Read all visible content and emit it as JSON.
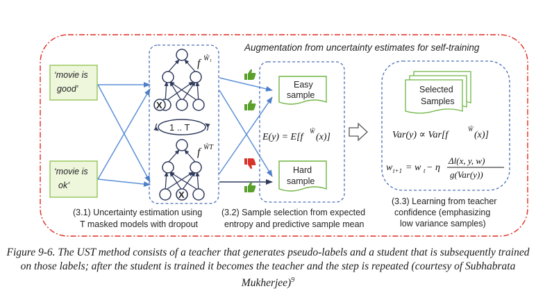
{
  "header": {
    "augmentation_title": "Augmentation from uncertainty estimates for self-training"
  },
  "inputs": [
    {
      "line1": "‘movie is",
      "line2": "good’"
    },
    {
      "line1": "‘movie is",
      "line2": "ok’"
    }
  ],
  "models": {
    "top_label": "f",
    "top_sup": "W̃₁",
    "bottom_label": "f",
    "bottom_sup": "W̃T",
    "iteration_label": "1 .. T",
    "dropout_mark": "X"
  },
  "samples": {
    "easy": {
      "line1": "Easy",
      "line2": "sample"
    },
    "hard": {
      "line1": "Hard",
      "line2": "sample"
    },
    "expectation_formula": "E(y) = E[f W̃(x)]",
    "expectation_lhs": "E(y) = E[f",
    "expectation_sup": "W̃",
    "expectation_rhs": "(x)]"
  },
  "student": {
    "selected_line1": "Selected",
    "selected_line2": "Samples",
    "variance_lhs": "Var(y) ∝ Var[f",
    "variance_sup": "W̃",
    "variance_rhs": "(x)]",
    "update_lhs": "w",
    "update_lhs_sub": "t+1",
    "update_mid": " = w",
    "update_mid_sub": "t",
    "update_minus": " − η",
    "update_numerator": "Δl(x, y, w)",
    "update_denominator": "g(Var(y))"
  },
  "section_labels": {
    "s1_line1": "(3.1) Uncertainty estimation using",
    "s1_line2": "T masked models with dropout",
    "s2_line1": "(3.2) Sample selection from expected",
    "s2_line2": "entropy and predictive sample mean",
    "s3_line1": "(3.3) Learning from teacher",
    "s3_line2": "confidence (emphasizing",
    "s3_line3": "low variance samples)"
  },
  "caption": {
    "text": "Figure 9-6. The UST method consists of a teacher that generates pseudo-labels and a student that is subsequently trained on those labels; after the student is trained it becomes the teacher and the step is repeated (courtesy of Subhabrata Mukherjee)",
    "footnote": "9"
  },
  "colors": {
    "outer_border": "#e0281e",
    "panel_border": "#4a6fb5",
    "arrow": "#5b8fd6",
    "node": "#2f3a5c",
    "input_fill": "#eef6dc",
    "input_border": "#8cbf4a",
    "sample_border": "#6cb33f",
    "thumb_up": "#5aa02c",
    "thumb_down": "#d9342b"
  }
}
